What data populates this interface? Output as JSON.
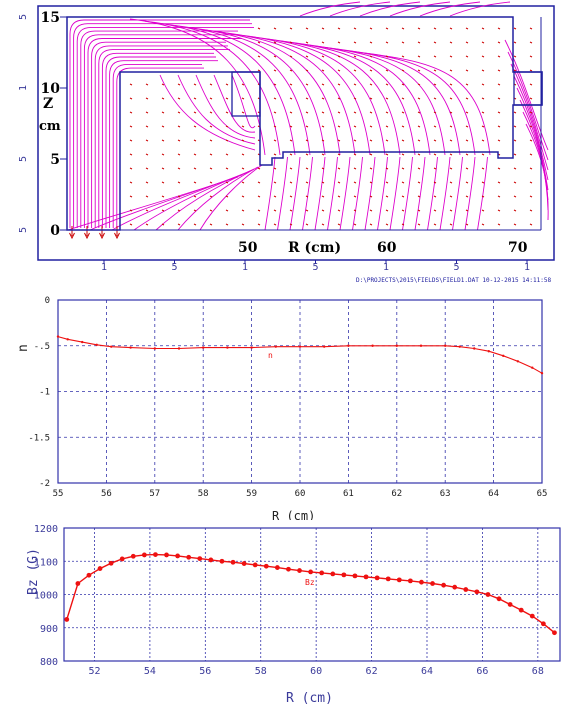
{
  "chart_data": [
    {
      "type": "field-map",
      "ylabel_top": "Z",
      "ylabel_bottom": "cm",
      "xlabel": "R (cm)",
      "inline_ticks": [
        "50",
        "60",
        "70"
      ],
      "y_ticks": [
        "15",
        "10",
        "5",
        "0"
      ],
      "outer_y_ticks": [
        "5",
        "1",
        "5",
        "5"
      ],
      "bottom_ticks": [
        "1",
        "5",
        "1",
        "5",
        "1",
        "5",
        "1"
      ],
      "footer": "D:\\PROJECTS\\2015\\FIELDS\\FIELD1.DAT  10-12-2015  14:11:58",
      "xlim": [
        43,
        73
      ],
      "ylim": [
        0,
        15.5
      ]
    },
    {
      "type": "line",
      "xlabel": "R (cm)",
      "ylabel": "n",
      "series_label": "n",
      "xlim": [
        55,
        65
      ],
      "ylim": [
        -2,
        0
      ],
      "x_ticks": [
        "55",
        "56",
        "57",
        "58",
        "59",
        "60",
        "61",
        "62",
        "63",
        "64",
        "65"
      ],
      "y_ticks": [
        "0",
        "-.5",
        "-1",
        "-1.5",
        "-2"
      ],
      "x": [
        55,
        55.2,
        55.5,
        55.8,
        56.1,
        56.5,
        57,
        57.5,
        58,
        58.5,
        59,
        59.5,
        60,
        60.5,
        61,
        61.5,
        62,
        62.5,
        63,
        63.3,
        63.6,
        63.9,
        64.2,
        64.5,
        64.8,
        65
      ],
      "values": [
        -0.4,
        -0.43,
        -0.46,
        -0.49,
        -0.51,
        -0.52,
        -0.53,
        -0.53,
        -0.52,
        -0.52,
        -0.52,
        -0.51,
        -0.51,
        -0.51,
        -0.5,
        -0.5,
        -0.5,
        -0.5,
        -0.5,
        -0.51,
        -0.53,
        -0.56,
        -0.61,
        -0.67,
        -0.74,
        -0.8
      ]
    },
    {
      "type": "line",
      "xlabel": "R (cm)",
      "ylabel": "Bz (G)",
      "series_label": "Bz",
      "xlim": [
        50.9,
        68.8
      ],
      "ylim": [
        800,
        1200
      ],
      "x_ticks": [
        "52",
        "54",
        "56",
        "58",
        "60",
        "62",
        "64",
        "66",
        "68"
      ],
      "y_ticks": [
        "1200",
        "1100",
        "1000",
        "900",
        "800"
      ],
      "x": [
        51.0,
        51.4,
        51.8,
        52.2,
        52.6,
        53.0,
        53.4,
        53.8,
        54.2,
        54.6,
        55.0,
        55.4,
        55.8,
        56.2,
        56.6,
        57.0,
        57.4,
        57.8,
        58.2,
        58.6,
        59.0,
        59.4,
        59.8,
        60.2,
        60.6,
        61.0,
        61.4,
        61.8,
        62.2,
        62.6,
        63.0,
        63.4,
        63.8,
        64.2,
        64.6,
        65.0,
        65.4,
        65.8,
        66.2,
        66.6,
        67.0,
        67.4,
        67.8,
        68.2,
        68.6
      ],
      "values": [
        925,
        1033,
        1058,
        1078,
        1094,
        1107,
        1115,
        1119,
        1120,
        1119,
        1116,
        1112,
        1108,
        1104,
        1100,
        1097,
        1093,
        1089,
        1085,
        1081,
        1076,
        1072,
        1068,
        1065,
        1062,
        1059,
        1056,
        1053,
        1050,
        1047,
        1044,
        1041,
        1037,
        1033,
        1028,
        1022,
        1015,
        1008,
        1000,
        987,
        970,
        953,
        935,
        912,
        885
      ]
    }
  ],
  "colors": {
    "frame": "#2020a0",
    "field_lines": "#dd00cc",
    "vectors": "#cc0000",
    "curve": "#ee1111",
    "grid": "#3333aa"
  }
}
